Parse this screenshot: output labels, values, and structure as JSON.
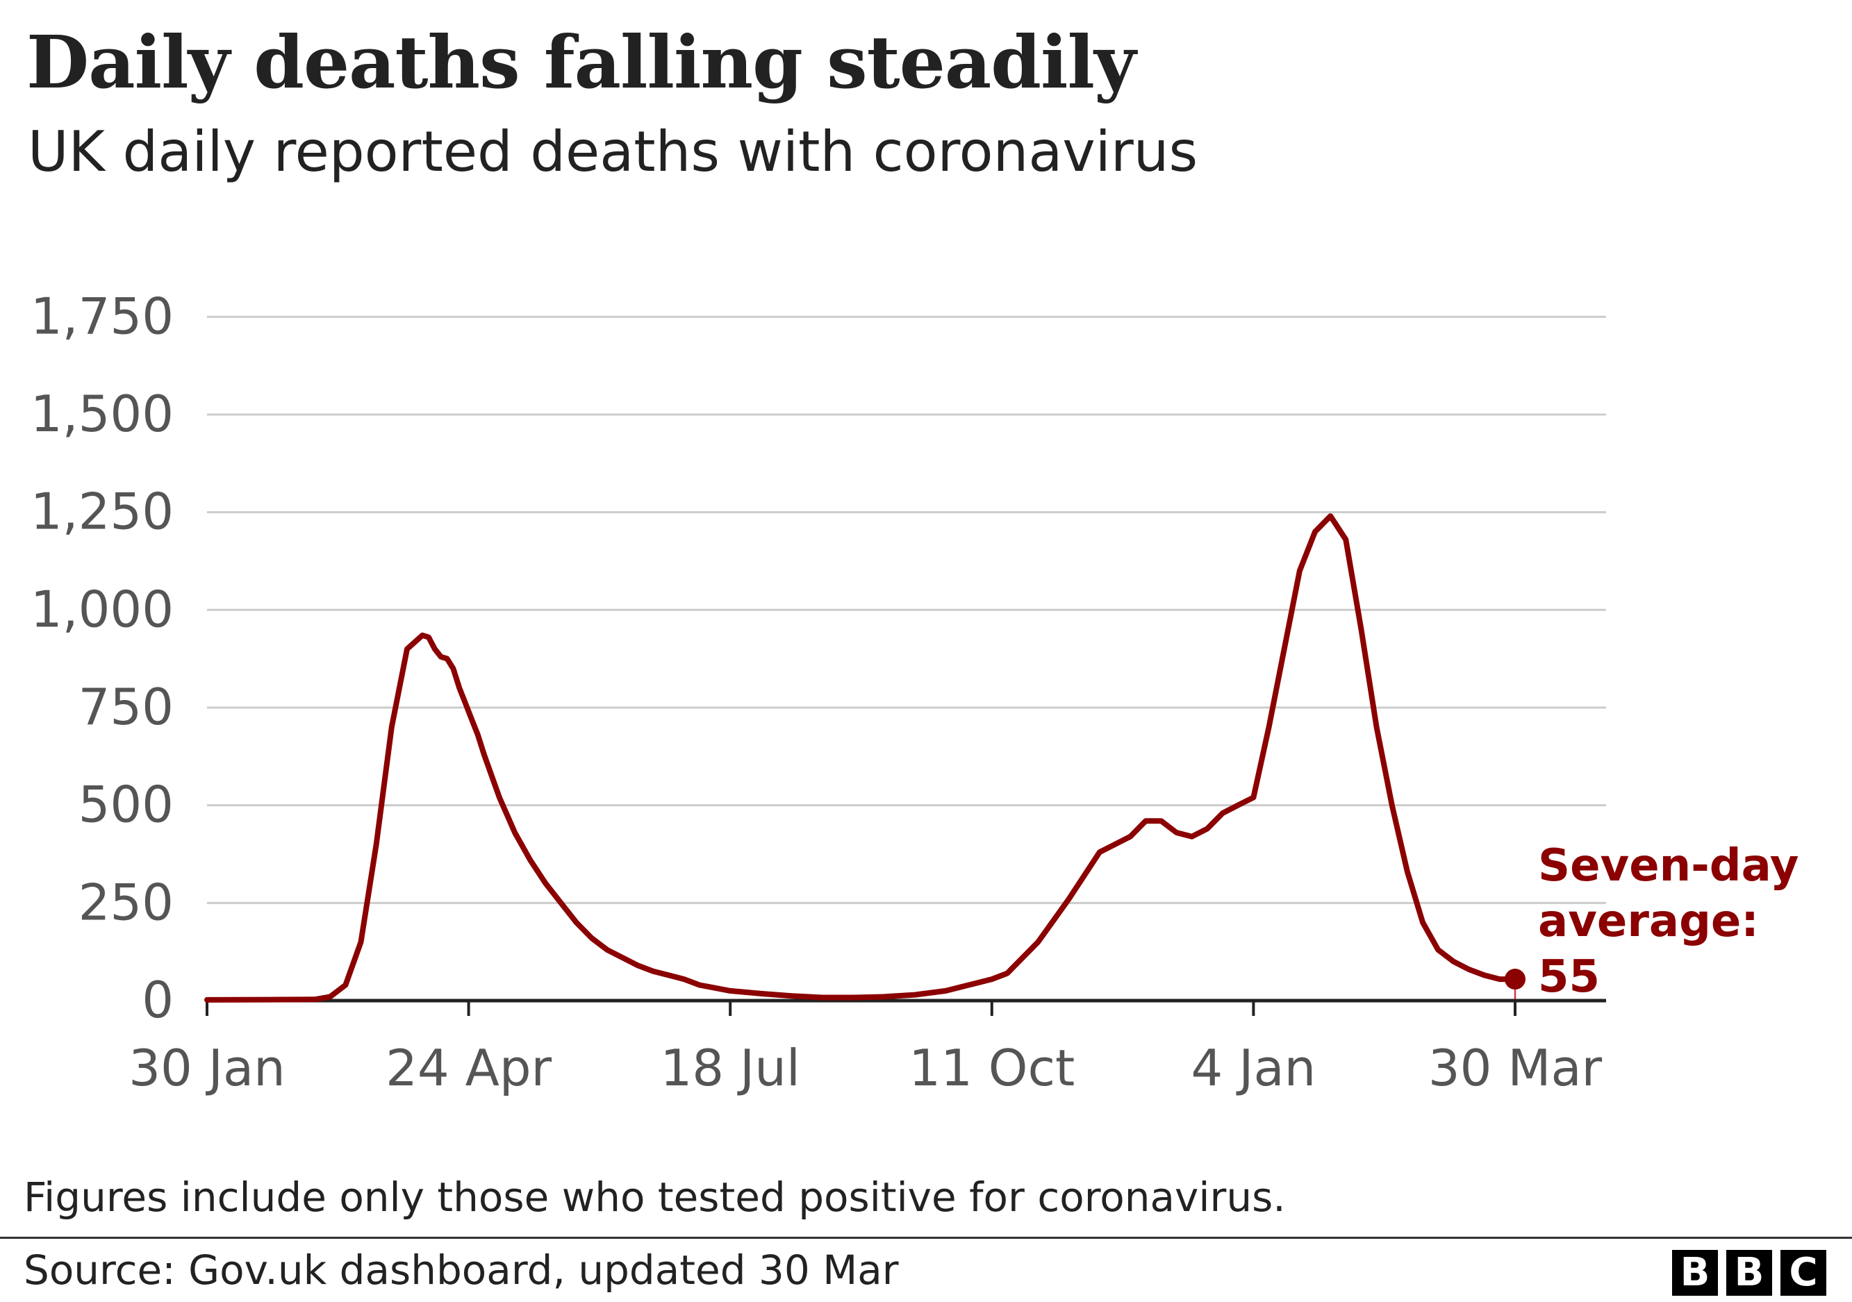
{
  "chart_data": {
    "type": "bar",
    "title": "Daily deaths falling steadily",
    "subtitle": "UK daily reported deaths with coronavirus",
    "ylim": [
      0,
      1850
    ],
    "yticks": [
      0,
      250,
      500,
      750,
      1000,
      1250,
      1500,
      1750
    ],
    "ytick_labels": [
      "0",
      "250",
      "500",
      "750",
      "1,000",
      "1,250",
      "1,500",
      "1,750"
    ],
    "xticks": [
      0,
      85,
      170,
      255,
      340,
      425
    ],
    "xtick_labels": [
      "30 Jan",
      "24 Apr",
      "18 Jul",
      "11 Oct",
      "4 Jan",
      "30 Mar"
    ],
    "grid": true,
    "series": [
      {
        "name": "",
        "kind": "bar",
        "color": "#c8102e",
        "x": [
          0,
          425
        ],
        "values": [
          0,
          52
        ]
      },
      {
        "name": "Seven-day average",
        "kind": "line",
        "color": "#8b0000",
        "x": [
          0,
          35,
          40,
          45,
          50,
          55,
          60,
          65,
          70,
          72,
          74,
          76,
          78,
          80,
          82,
          84,
          86,
          88,
          90,
          95,
          100,
          105,
          110,
          115,
          120,
          125,
          130,
          135,
          140,
          145,
          150,
          155,
          160,
          170,
          180,
          190,
          200,
          210,
          220,
          230,
          240,
          250,
          255,
          260,
          270,
          280,
          290,
          300,
          305,
          310,
          315,
          320,
          325,
          330,
          335,
          340,
          345,
          350,
          355,
          360,
          365,
          370,
          375,
          380,
          385,
          390,
          395,
          400,
          405,
          410,
          415,
          420,
          425
        ],
        "values": [
          2,
          3,
          10,
          40,
          150,
          400,
          700,
          900,
          935,
          930,
          900,
          880,
          875,
          850,
          800,
          760,
          720,
          680,
          630,
          520,
          430,
          360,
          300,
          250,
          200,
          160,
          130,
          110,
          90,
          75,
          65,
          55,
          40,
          25,
          18,
          12,
          8,
          8,
          10,
          15,
          25,
          45,
          55,
          70,
          150,
          260,
          380,
          420,
          460,
          460,
          430,
          420,
          440,
          480,
          500,
          520,
          700,
          900,
          1100,
          1200,
          1240,
          1180,
          950,
          700,
          500,
          330,
          200,
          130,
          100,
          80,
          65,
          55,
          55
        ]
      }
    ],
    "annotation": {
      "label": "Seven-day average: 55",
      "lines": [
        "Seven-day",
        "average:",
        "55"
      ],
      "value": 55,
      "color": "#8b0000"
    }
  },
  "footer": {
    "note": "Figures include only those who tested positive for coronavirus.",
    "source": "Source: Gov.uk dashboard, updated 30 Mar",
    "logo_letters": [
      "B",
      "B",
      "C"
    ]
  }
}
